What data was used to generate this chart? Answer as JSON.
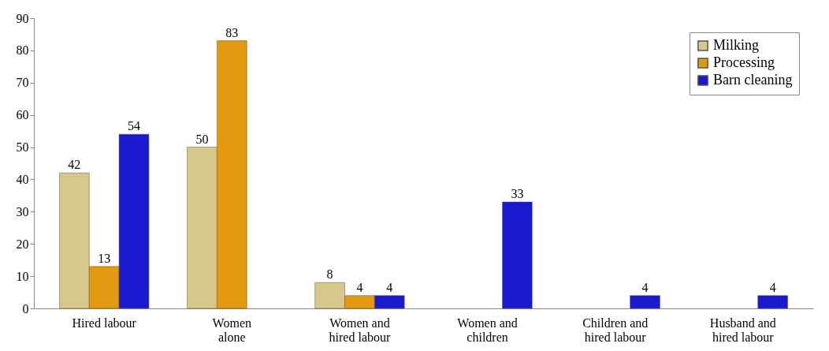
{
  "chart_data": {
    "type": "bar",
    "categories": [
      "Hired labour",
      "Women\nalone",
      "Women and\nhired labour",
      "Women and\nchildren",
      "Children and\nhired labour",
      "Husband and\nhired labour"
    ],
    "series": [
      {
        "name": "Milking",
        "color": "#d8c78a",
        "values": [
          42,
          50,
          8,
          null,
          null,
          null
        ]
      },
      {
        "name": "Processing",
        "color": "#e39a10",
        "values": [
          13,
          83,
          4,
          null,
          null,
          null
        ]
      },
      {
        "name": "Barn cleaning",
        "color": "#1a1ad0",
        "values": [
          54,
          null,
          4,
          33,
          4,
          4
        ]
      }
    ],
    "ylim": [
      0,
      90
    ],
    "yticks": [
      0,
      10,
      20,
      30,
      40,
      50,
      60,
      70,
      80,
      90
    ],
    "grid": false,
    "legend": "top right",
    "data_labels": true
  }
}
